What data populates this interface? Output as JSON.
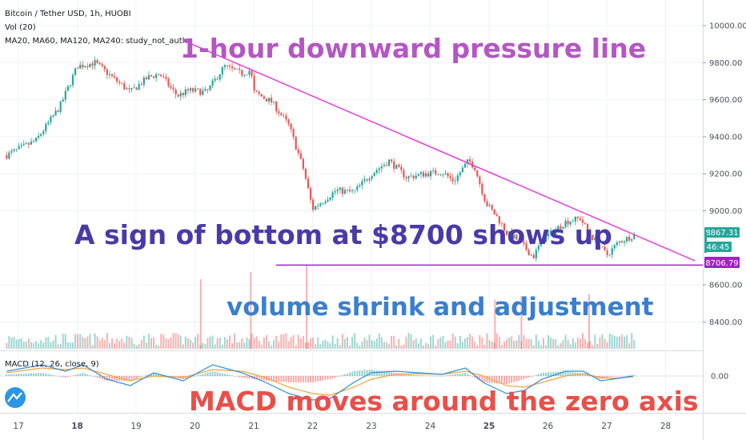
{
  "header": {
    "symbol_line": "Bitcoin / Tether USD, 1h, HUOBI",
    "volume_line": "Vol (20)",
    "ma_line": "MA20, MA60, MA120, MA240: study_not_auth"
  },
  "macd_label": "MACD (12, 26, close, 9)",
  "annotations": {
    "trendline": "1-hour downward pressure line",
    "bottom": "A sign of bottom at $8700 shows up",
    "volume": "volume shrink and adjustment",
    "macd": "MACD moves around the zero axis"
  },
  "price_badges": {
    "last": "8867.31",
    "countdown": "46:45",
    "support": "8706.79"
  },
  "colors": {
    "up": "#26a69a",
    "down": "#ef5350",
    "trendline": "#e830e0",
    "support_line": "#a020d0",
    "ann_trendline": "#b556c4",
    "ann_bottom": "#4a3aa8",
    "ann_volume": "#3a7fcf",
    "ann_macd": "#e8504a",
    "last_badge": "#26a69a",
    "support_badge": "#a020d0",
    "macd_line": "#2e8fd6",
    "signal_line": "#f5a33a"
  },
  "chart_data": {
    "type": "candlestick",
    "title": "Bitcoin / Tether USD, 1h, HUOBI",
    "y_axis": {
      "ticks": [
        "10000.00",
        "9800.00",
        "9600.00",
        "9400.00",
        "9200.00",
        "9000.00",
        "8600.00",
        "8400.00"
      ],
      "ylim": [
        8180,
        10120
      ]
    },
    "macd_axis": {
      "ticks": [
        "0.00"
      ]
    },
    "x_axis": {
      "ticks": [
        "17",
        "18",
        "19",
        "20",
        "21",
        "22",
        "23",
        "24",
        "25",
        "26",
        "27",
        "28"
      ],
      "bold": [
        "18",
        "25"
      ]
    },
    "price_path": [
      [
        16.8,
        9300
      ],
      [
        17.3,
        9380
      ],
      [
        17.7,
        9560
      ],
      [
        18.0,
        9780
      ],
      [
        18.3,
        9800
      ],
      [
        18.6,
        9720
      ],
      [
        18.9,
        9640
      ],
      [
        19.2,
        9720
      ],
      [
        19.4,
        9740
      ],
      [
        19.7,
        9620
      ],
      [
        19.9,
        9650
      ],
      [
        20.2,
        9640
      ],
      [
        20.5,
        9780
      ],
      [
        20.8,
        9740
      ],
      [
        20.95,
        9760
      ],
      [
        21.0,
        9640
      ],
      [
        21.3,
        9590
      ],
      [
        21.6,
        9460
      ],
      [
        21.85,
        9220
      ],
      [
        22.0,
        9010
      ],
      [
        22.2,
        9060
      ],
      [
        22.4,
        9110
      ],
      [
        22.7,
        9100
      ],
      [
        23.0,
        9200
      ],
      [
        23.3,
        9270
      ],
      [
        23.6,
        9180
      ],
      [
        23.9,
        9200
      ],
      [
        24.2,
        9210
      ],
      [
        24.4,
        9160
      ],
      [
        24.65,
        9270
      ],
      [
        24.75,
        9240
      ],
      [
        24.95,
        9040
      ],
      [
        25.15,
        8960
      ],
      [
        25.3,
        8880
      ],
      [
        25.5,
        8840
      ],
      [
        25.75,
        8750
      ],
      [
        25.9,
        8840
      ],
      [
        26.1,
        8890
      ],
      [
        26.3,
        8940
      ],
      [
        26.55,
        8960
      ],
      [
        26.7,
        8880
      ],
      [
        26.85,
        8820
      ],
      [
        27.0,
        8760
      ],
      [
        27.2,
        8830
      ],
      [
        27.45,
        8867
      ]
    ],
    "volume_spikes": [
      [
        20.1,
        8630
      ],
      [
        20.95,
        8670
      ],
      [
        21.9,
        8710
      ],
      [
        25.1,
        8520
      ],
      [
        25.55,
        8540
      ],
      [
        26.7,
        8550
      ]
    ],
    "trendline": {
      "start": [
        19.8,
        9920
      ],
      "end": [
        28.5,
        8730
      ]
    },
    "support_level": 8706.79,
    "last_price": 8867.31,
    "macd_series": {
      "macd": [
        [
          16.8,
          6
        ],
        [
          17.4,
          14
        ],
        [
          17.8,
          6
        ],
        [
          18.1,
          14
        ],
        [
          18.5,
          -4
        ],
        [
          18.9,
          -12
        ],
        [
          19.3,
          4
        ],
        [
          19.8,
          -6
        ],
        [
          20.3,
          14
        ],
        [
          20.8,
          4
        ],
        [
          21.2,
          -8
        ],
        [
          21.6,
          -22
        ],
        [
          22.0,
          -30
        ],
        [
          22.3,
          -28
        ],
        [
          22.7,
          -8
        ],
        [
          23.0,
          4
        ],
        [
          23.4,
          6
        ],
        [
          23.8,
          4
        ],
        [
          24.2,
          2
        ],
        [
          24.6,
          10
        ],
        [
          24.9,
          -8
        ],
        [
          25.3,
          -22
        ],
        [
          25.6,
          -18
        ],
        [
          25.9,
          -4
        ],
        [
          26.3,
          6
        ],
        [
          26.6,
          6
        ],
        [
          26.9,
          -6
        ],
        [
          27.1,
          -4
        ],
        [
          27.45,
          0
        ]
      ],
      "signal": [
        [
          16.8,
          4
        ],
        [
          17.4,
          10
        ],
        [
          17.8,
          8
        ],
        [
          18.1,
          10
        ],
        [
          18.5,
          2
        ],
        [
          18.9,
          -6
        ],
        [
          19.3,
          0
        ],
        [
          19.8,
          -2
        ],
        [
          20.3,
          8
        ],
        [
          20.8,
          6
        ],
        [
          21.2,
          -2
        ],
        [
          21.6,
          -14
        ],
        [
          22.0,
          -22
        ],
        [
          22.3,
          -24
        ],
        [
          22.7,
          -14
        ],
        [
          23.0,
          -4
        ],
        [
          23.4,
          2
        ],
        [
          23.8,
          3
        ],
        [
          24.2,
          2
        ],
        [
          24.6,
          6
        ],
        [
          24.9,
          0
        ],
        [
          25.3,
          -12
        ],
        [
          25.6,
          -14
        ],
        [
          25.9,
          -8
        ],
        [
          26.3,
          0
        ],
        [
          26.6,
          3
        ],
        [
          26.9,
          -2
        ],
        [
          27.1,
          -3
        ],
        [
          27.45,
          -1
        ]
      ]
    },
    "grid": true
  }
}
